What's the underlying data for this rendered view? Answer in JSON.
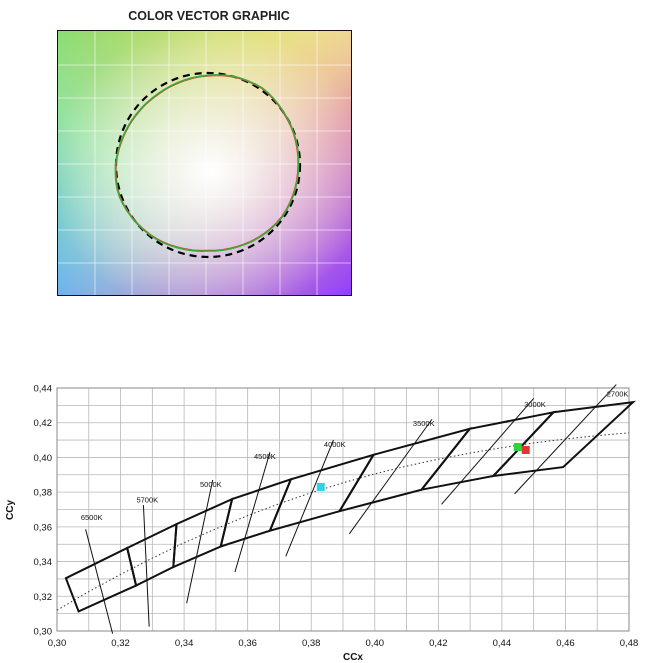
{
  "chart_data": [
    {
      "type": "polar-vector",
      "title": "COLOR VECTOR GRAPHIC",
      "reference_circle": {
        "style": "dashed",
        "color": "#000000",
        "radius": 1.0
      },
      "series": [
        {
          "color": "#e0342c",
          "radius_by_hue": [
            0.98,
            0.99,
            1.0,
            1.02,
            1.0,
            0.97,
            0.95,
            0.94,
            0.95,
            0.97,
            1.0,
            1.02,
            1.0,
            0.98,
            0.95,
            0.93,
            0.94,
            0.96,
            0.98,
            0.98
          ]
        },
        {
          "color": "#3fa93a",
          "radius_by_hue": [
            0.985,
            0.995,
            1.005,
            1.025,
            1.005,
            0.975,
            0.955,
            0.945,
            0.955,
            0.975,
            1.005,
            1.025,
            1.005,
            0.985,
            0.955,
            0.935,
            0.945,
            0.965,
            0.985,
            0.985
          ]
        }
      ],
      "grid": true
    },
    {
      "type": "line",
      "xlabel": "CCx",
      "ylabel": "CCy",
      "xlim": [
        0.3,
        0.48
      ],
      "ylim": [
        0.3,
        0.44
      ],
      "xticks": [
        "0,30",
        "0,32",
        "0,34",
        "0,36",
        "0,38",
        "0,40",
        "0,42",
        "0,44",
        "0,46",
        "0,48"
      ],
      "yticks": [
        "0,30",
        "0,32",
        "0,34",
        "0,36",
        "0,38",
        "0,40",
        "0,42",
        "0,44"
      ],
      "grid": true,
      "quadrangles": [
        [
          [
            0.3028,
            0.3304
          ],
          [
            0.3221,
            0.3478
          ],
          [
            0.3249,
            0.3262
          ],
          [
            0.3068,
            0.3113
          ]
        ],
        [
          [
            0.3221,
            0.3478
          ],
          [
            0.3376,
            0.3616
          ],
          [
            0.3366,
            0.3369
          ],
          [
            0.3249,
            0.3262
          ]
        ],
        [
          [
            0.3376,
            0.3616
          ],
          [
            0.3551,
            0.376
          ],
          [
            0.3515,
            0.3487
          ],
          [
            0.3366,
            0.3369
          ]
        ],
        [
          [
            0.3551,
            0.376
          ],
          [
            0.3736,
            0.3874
          ],
          [
            0.367,
            0.3578
          ],
          [
            0.3515,
            0.3487
          ]
        ],
        [
          [
            0.3736,
            0.3874
          ],
          [
            0.3996,
            0.4015
          ],
          [
            0.3889,
            0.369
          ],
          [
            0.367,
            0.3578
          ]
        ],
        [
          [
            0.3996,
            0.4015
          ],
          [
            0.4299,
            0.4165
          ],
          [
            0.4147,
            0.3814
          ],
          [
            0.3889,
            0.369
          ]
        ],
        [
          [
            0.4299,
            0.4165
          ],
          [
            0.4562,
            0.426
          ],
          [
            0.4373,
            0.3893
          ],
          [
            0.4147,
            0.3814
          ]
        ],
        [
          [
            0.4562,
            0.426
          ],
          [
            0.4813,
            0.4319
          ],
          [
            0.4593,
            0.3944
          ],
          [
            0.4373,
            0.3893
          ]
        ]
      ],
      "planckian_locus": {
        "style": "dotted",
        "x": [
          0.3,
          0.31,
          0.32,
          0.33,
          0.34,
          0.35,
          0.36,
          0.37,
          0.38,
          0.39,
          0.4,
          0.41,
          0.42,
          0.43,
          0.44,
          0.45,
          0.46,
          0.47,
          0.48
        ],
        "y": [
          0.312,
          0.3227,
          0.3326,
          0.342,
          0.3508,
          0.3589,
          0.3665,
          0.3734,
          0.3797,
          0.3854,
          0.3905,
          0.395,
          0.399,
          0.4025,
          0.4056,
          0.4083,
          0.4106,
          0.4126,
          0.4142
        ]
      },
      "isotherms": [
        {
          "label": "6500K",
          "from": [
            0.309,
            0.3586
          ],
          "to": [
            0.3175,
            0.2985
          ]
        },
        {
          "label": "5700K",
          "from": [
            0.3272,
            0.3725
          ],
          "to": [
            0.329,
            0.3025
          ]
        },
        {
          "label": "5000K",
          "from": [
            0.349,
            0.387
          ],
          "to": [
            0.3408,
            0.316
          ]
        },
        {
          "label": "4500K",
          "from": [
            0.367,
            0.403
          ],
          "to": [
            0.356,
            0.334
          ]
        },
        {
          "label": "4000K",
          "from": [
            0.387,
            0.41
          ],
          "to": [
            0.372,
            0.343
          ]
        },
        {
          "label": "3500K",
          "from": [
            0.418,
            0.422
          ],
          "to": [
            0.392,
            0.356
          ]
        },
        {
          "label": "3000K",
          "from": [
            0.45,
            0.434
          ],
          "to": [
            0.421,
            0.373
          ]
        },
        {
          "label": "2700K",
          "from": [
            0.476,
            0.442
          ],
          "to": [
            0.444,
            0.379
          ]
        }
      ],
      "cct_labels": [
        {
          "text": "6500K",
          "x": 0.3075,
          "y": 0.364
        },
        {
          "text": "5700K",
          "x": 0.325,
          "y": 0.374
        },
        {
          "text": "5000K",
          "x": 0.345,
          "y": 0.383
        },
        {
          "text": "4500K",
          "x": 0.362,
          "y": 0.399
        },
        {
          "text": "4000K",
          "x": 0.384,
          "y": 0.406
        },
        {
          "text": "3500K",
          "x": 0.412,
          "y": 0.418
        },
        {
          "text": "3000K",
          "x": 0.447,
          "y": 0.429
        },
        {
          "text": "2700K",
          "x": 0.473,
          "y": 0.435
        }
      ],
      "points": [
        {
          "x": 0.383,
          "y": 0.383,
          "color": "#2ad4e6"
        },
        {
          "x": 0.445,
          "y": 0.406,
          "color": "#2bd43a"
        },
        {
          "x": 0.4475,
          "y": 0.4043,
          "color": "#e23434"
        }
      ]
    }
  ]
}
